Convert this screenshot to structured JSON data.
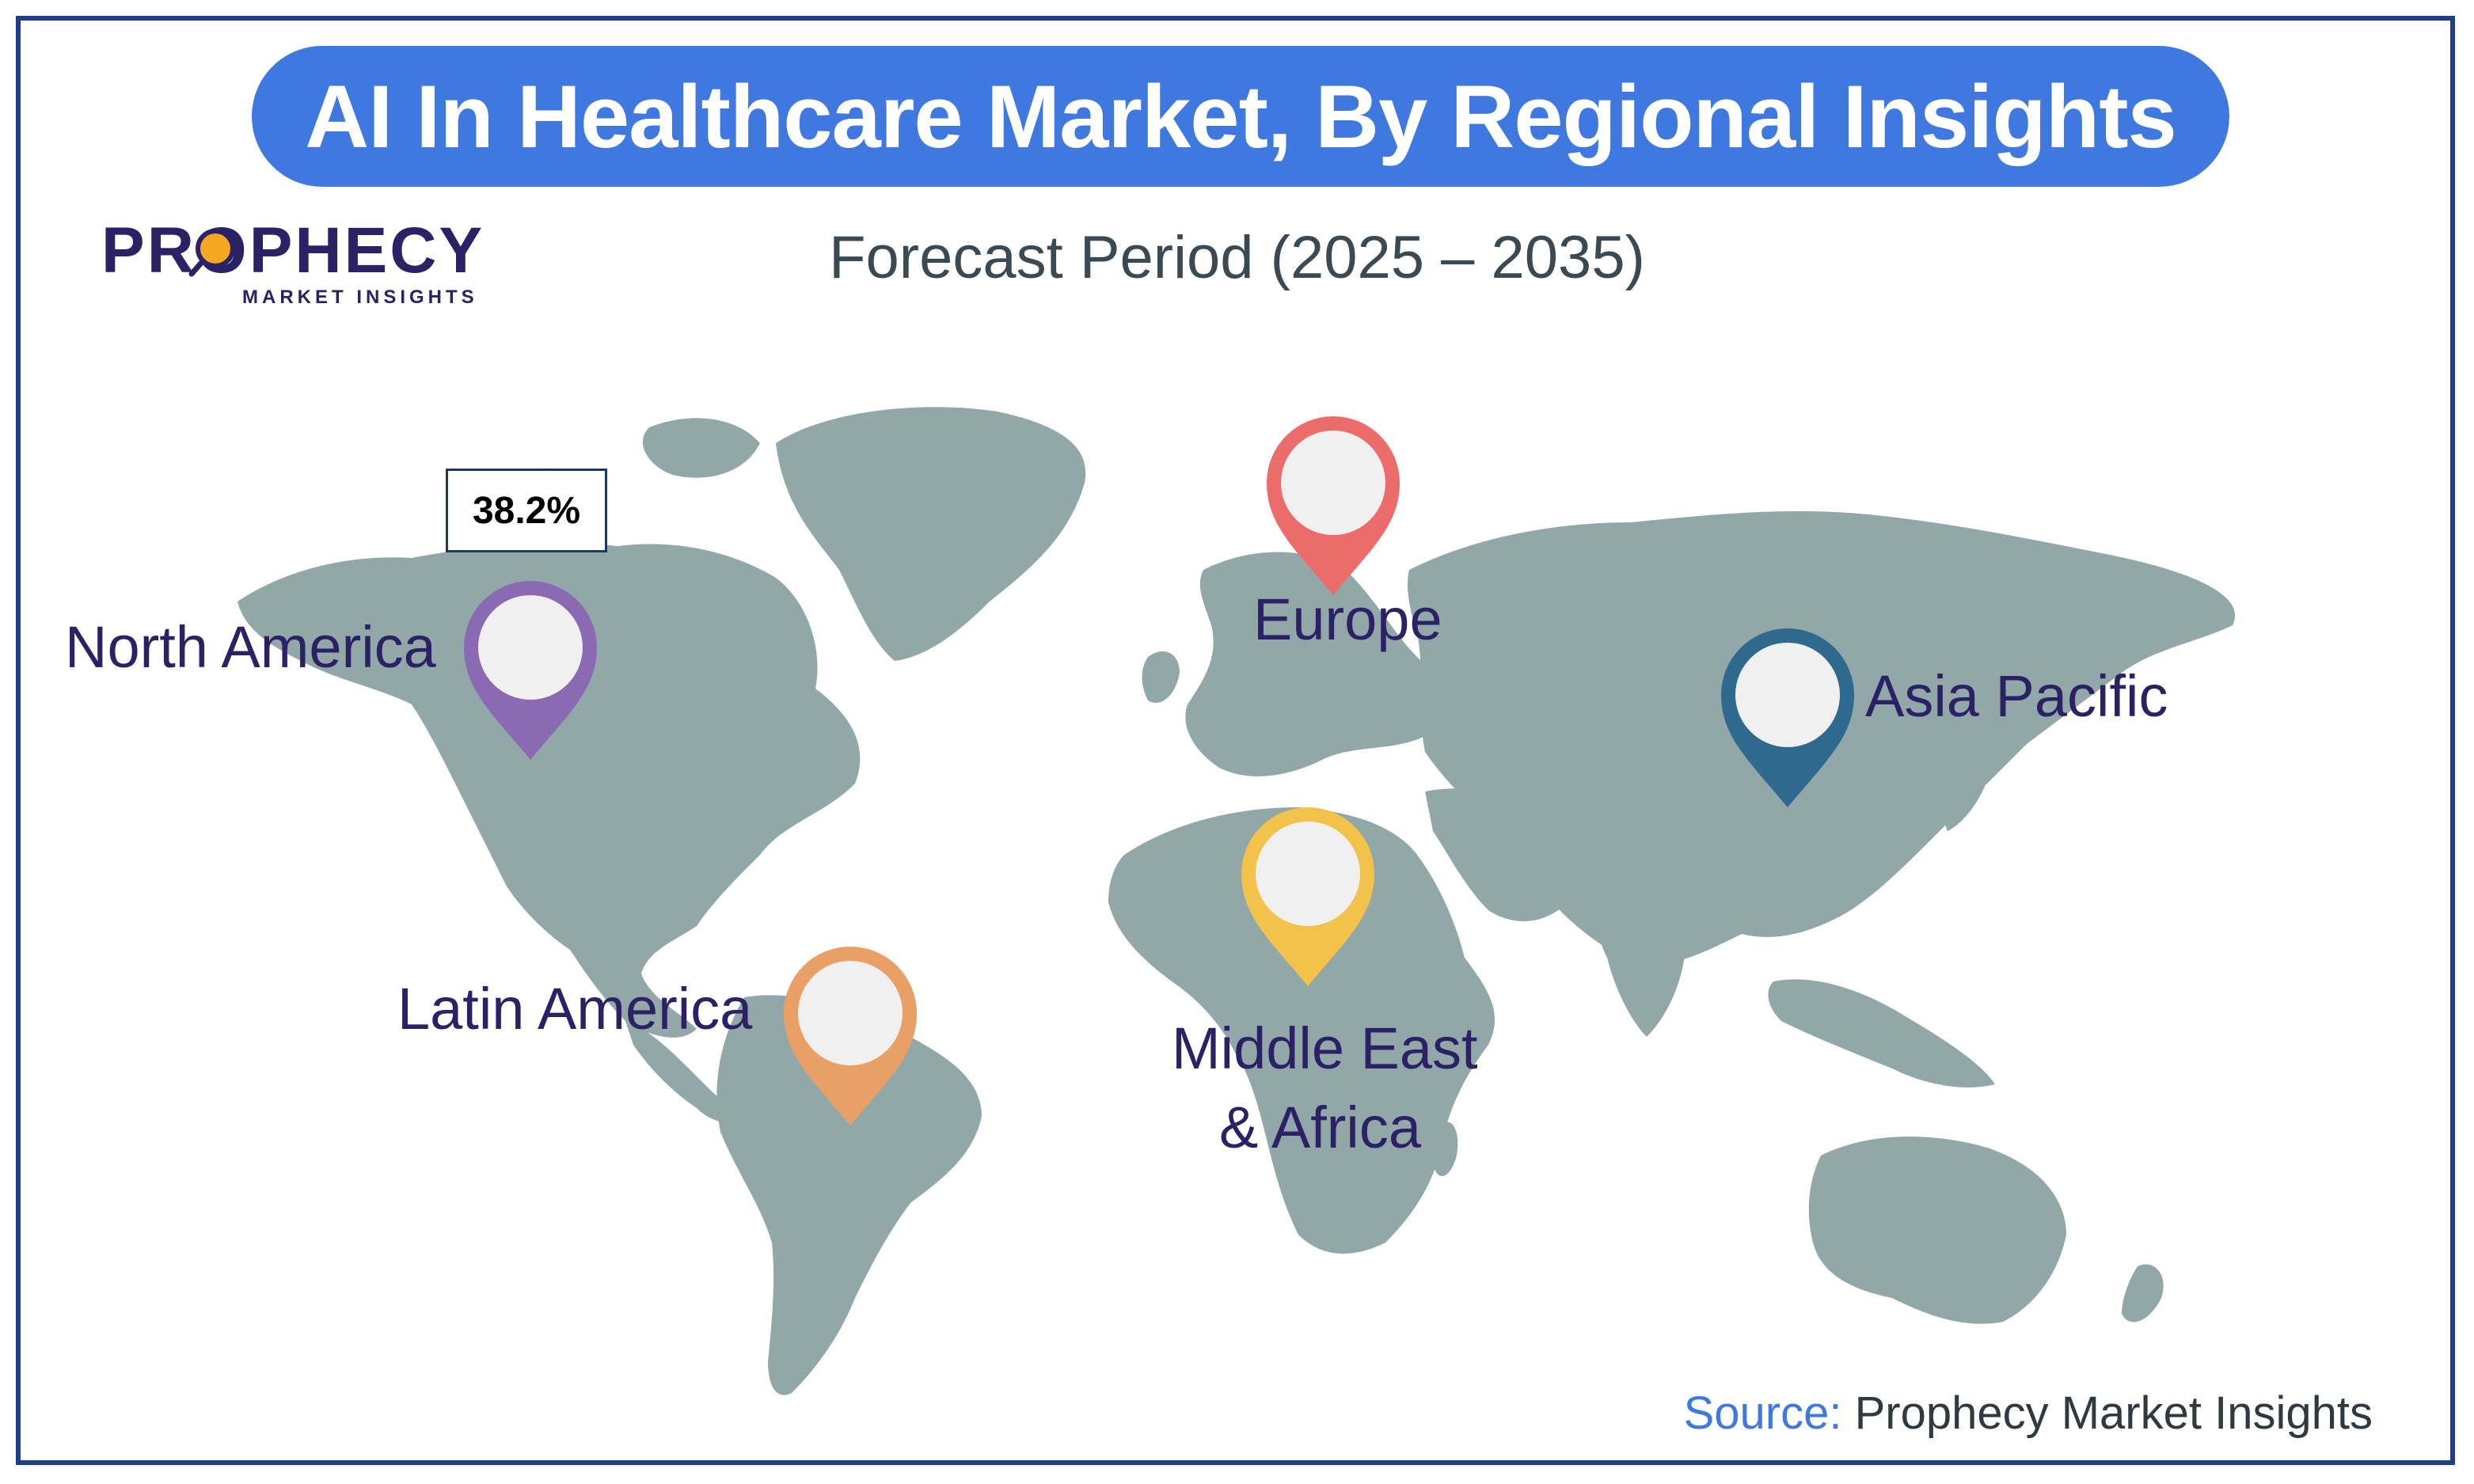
{
  "title": "AI In Healthcare Market, By Regional Insights",
  "subtitle": "Forecast Period (2025 – 2035)",
  "logo": {
    "name": "PROPHECY",
    "tagline": "MARKET INSIGHTS"
  },
  "highlight_value": "38.2%",
  "regions": [
    {
      "name": "North America",
      "color": "#8a6bb3"
    },
    {
      "name": "Europe",
      "color": "#ec6b6b"
    },
    {
      "name": "Asia Pacific",
      "color": "#2f6a8e"
    },
    {
      "name": "Latin America",
      "color": "#e8a066"
    },
    {
      "name": "Middle East",
      "name_line2": "& Africa",
      "color": "#f2c24b"
    }
  ],
  "source": {
    "label": "Source:",
    "value": "Prophecy Market Insights"
  },
  "colors": {
    "land": "#92a7a8",
    "title_bg": "#3f78df",
    "frame": "#1f3d8a",
    "text": "#2b2266"
  }
}
